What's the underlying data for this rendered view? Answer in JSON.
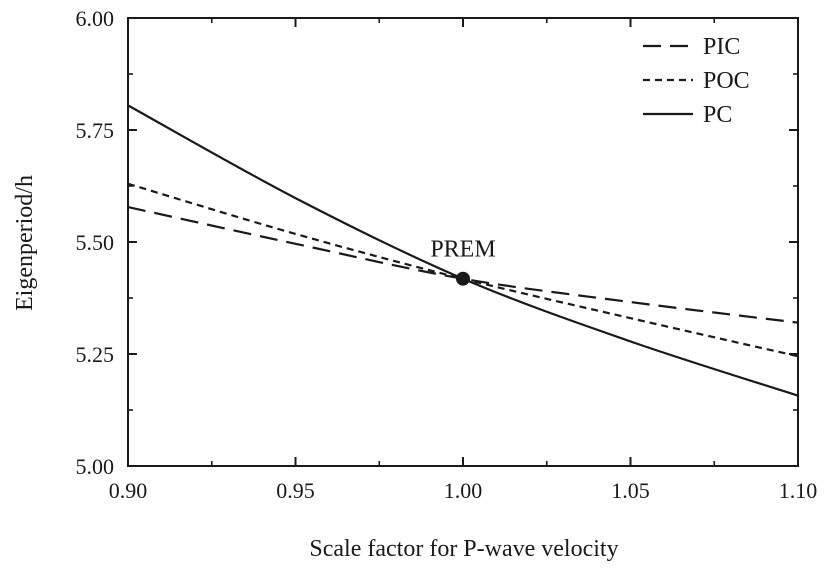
{
  "chart_data": {
    "type": "line",
    "title": "",
    "xlabel": "Scale factor for P-wave velocity",
    "ylabel": "Eigenperiod/h",
    "xlim": [
      0.9,
      1.1
    ],
    "ylim": [
      5.0,
      6.0
    ],
    "x_ticks": [
      "0.90",
      "0.95",
      "1.00",
      "1.05",
      "1.10"
    ],
    "y_ticks": [
      "5.00",
      "5.25",
      "5.50",
      "5.75",
      "6.00"
    ],
    "grid": false,
    "legend_position": "top-right",
    "series": [
      {
        "name": "PIC",
        "dash": "long-dash",
        "x": [
          0.9,
          0.95,
          1.0,
          1.05,
          1.1
        ],
        "values": [
          5.578,
          5.496,
          5.418,
          5.366,
          5.32
        ]
      },
      {
        "name": "POC",
        "dash": "short-dash",
        "x": [
          0.9,
          0.95,
          1.0,
          1.05,
          1.1
        ],
        "values": [
          5.63,
          5.518,
          5.418,
          5.33,
          5.245
        ]
      },
      {
        "name": "PC",
        "dash": "solid",
        "x": [
          0.9,
          0.95,
          1.0,
          1.05,
          1.1
        ],
        "values": [
          5.805,
          5.598,
          5.418,
          5.278,
          5.157
        ]
      }
    ],
    "annotations": [
      {
        "text": "PREM",
        "x": 1.0,
        "y": 5.418
      }
    ],
    "colors": {
      "line": "#1a1a1a",
      "marker": "#1a1a1a"
    }
  }
}
